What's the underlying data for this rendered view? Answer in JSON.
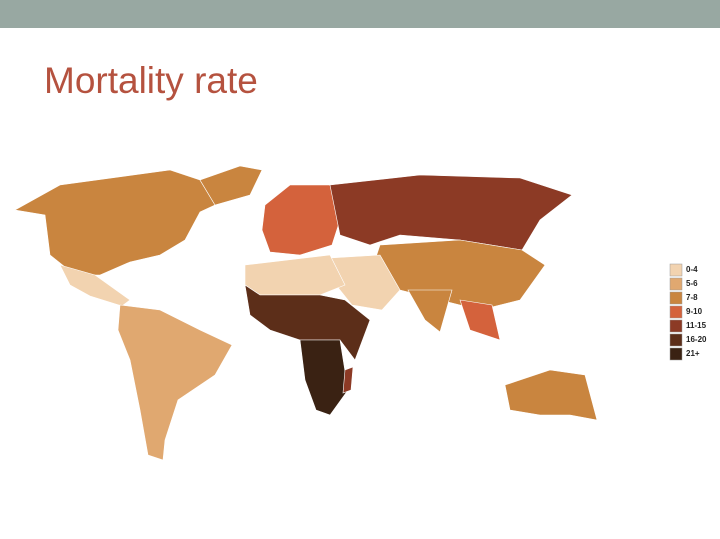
{
  "title": "Mortality rate",
  "legend": [
    {
      "label": "0-4",
      "color": "#f2d3b0"
    },
    {
      "label": "5-6",
      "color": "#e0a870"
    },
    {
      "label": "7-8",
      "color": "#c9853f"
    },
    {
      "label": "9-10",
      "color": "#d4623c"
    },
    {
      "label": "11-15",
      "color": "#8c3a25"
    },
    {
      "label": "16-20",
      "color": "#5c2e19"
    },
    {
      "label": "21+",
      "color": "#3a2213"
    }
  ]
}
